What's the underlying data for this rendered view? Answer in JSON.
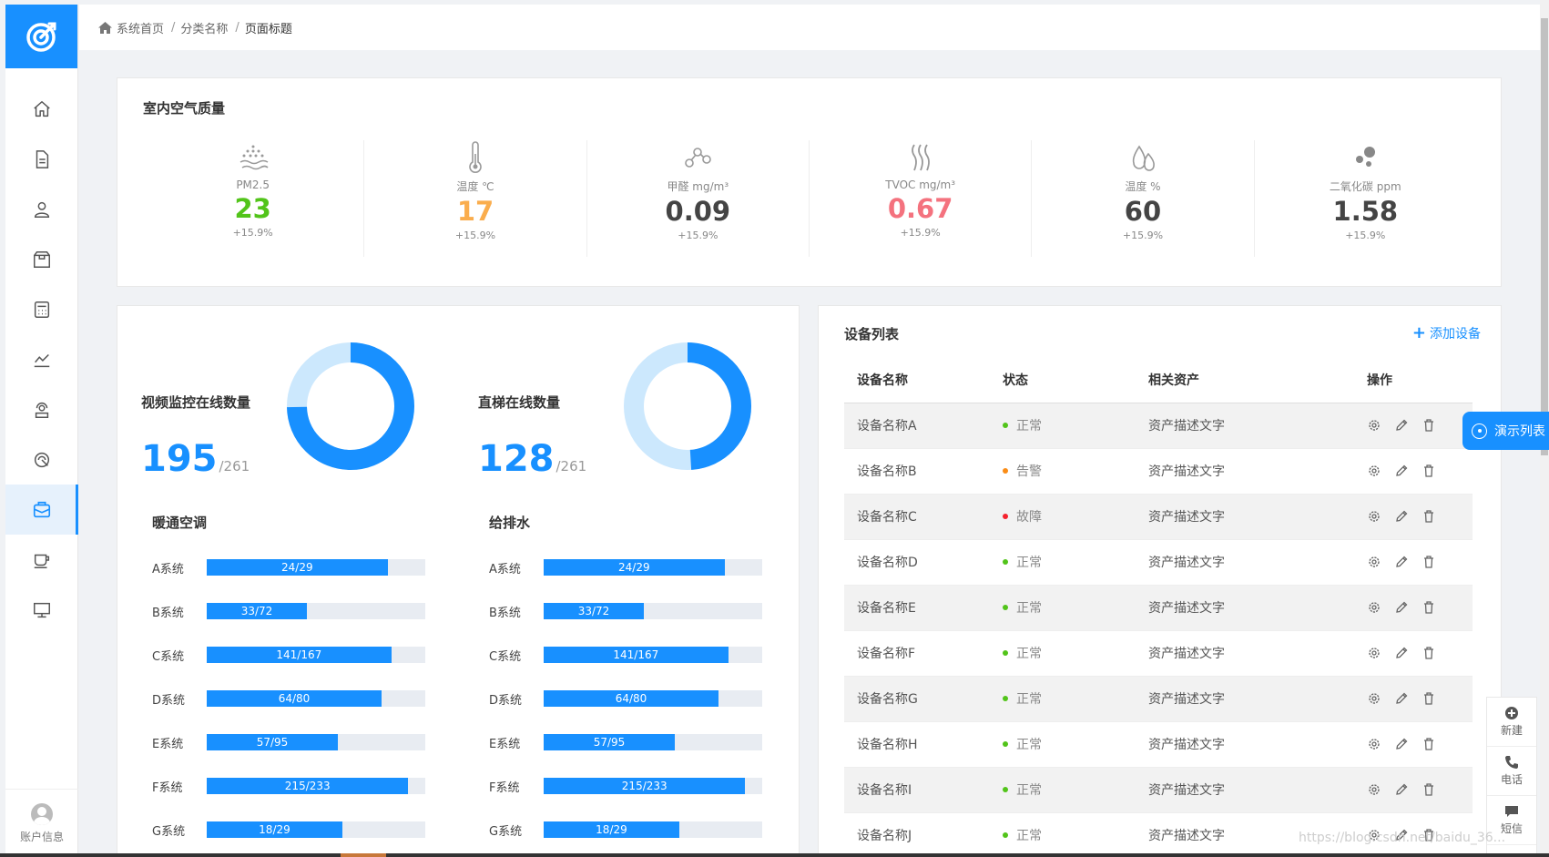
{
  "breadcrumb": {
    "items": [
      "系统首页",
      "分类名称"
    ],
    "current": "页面标题"
  },
  "sidebar": {
    "items": [
      "home-icon",
      "document-icon",
      "user-group-icon",
      "box-icon",
      "calculator-icon",
      "chart-icon",
      "sensor-icon",
      "monitor-wave-icon",
      "dashboard-icon",
      "cup-icon",
      "desktop-icon"
    ],
    "active": "dashboard-icon",
    "account_label": "账户信息"
  },
  "air_quality": {
    "title": "室内空气质量",
    "metrics": [
      {
        "icon": "dust-particles-icon",
        "label": "PM2.5",
        "value": "23",
        "change": "+15.9%",
        "color": "#52c41a"
      },
      {
        "icon": "thermometer-icon",
        "label": "温度 ℃",
        "value": "17",
        "change": "+15.9%",
        "color": "#faad4d"
      },
      {
        "icon": "molecule-icon",
        "label": "甲醛 mg/m³",
        "value": "0.09",
        "change": "+15.9%",
        "color": "#444444"
      },
      {
        "icon": "vapor-icon",
        "label": "TVOC mg/m³",
        "value": "0.67",
        "change": "+15.9%",
        "color": "#f4727e"
      },
      {
        "icon": "water-drops-icon",
        "label": "温度 %",
        "value": "60",
        "change": "+15.9%",
        "color": "#444444"
      },
      {
        "icon": "co2-bubbles-icon",
        "label": "二氧化碳 ppm",
        "value": "1.58",
        "change": "+15.9%",
        "color": "#444444"
      }
    ]
  },
  "online": [
    {
      "title": "视频监控在线数量",
      "value": "195",
      "total": "/261",
      "count": 195,
      "max": 261
    },
    {
      "title": "直梯在线数量",
      "value": "128",
      "total": "/261",
      "count": 128,
      "max": 261
    }
  ],
  "systems": [
    {
      "title": "暖通空调",
      "rows": [
        {
          "label": "A系统",
          "text": "24/29",
          "value": 24,
          "max": 29
        },
        {
          "label": "B系统",
          "text": "33/72",
          "value": 33,
          "max": 72
        },
        {
          "label": "C系统",
          "text": "141/167",
          "value": 141,
          "max": 167
        },
        {
          "label": "D系统",
          "text": "64/80",
          "value": 64,
          "max": 80
        },
        {
          "label": "E系统",
          "text": "57/95",
          "value": 57,
          "max": 95
        },
        {
          "label": "F系统",
          "text": "215/233",
          "value": 215,
          "max": 233
        },
        {
          "label": "G系统",
          "text": "18/29",
          "value": 18,
          "max": 29
        }
      ]
    },
    {
      "title": "给排水",
      "rows": [
        {
          "label": "A系统",
          "text": "24/29",
          "value": 24,
          "max": 29
        },
        {
          "label": "B系统",
          "text": "33/72",
          "value": 33,
          "max": 72
        },
        {
          "label": "C系统",
          "text": "141/167",
          "value": 141,
          "max": 167
        },
        {
          "label": "D系统",
          "text": "64/80",
          "value": 64,
          "max": 80
        },
        {
          "label": "E系统",
          "text": "57/95",
          "value": 57,
          "max": 95
        },
        {
          "label": "F系统",
          "text": "215/233",
          "value": 215,
          "max": 233
        },
        {
          "label": "G系统",
          "text": "18/29",
          "value": 18,
          "max": 29
        }
      ]
    }
  ],
  "devices": {
    "title": "设备列表",
    "add_label": "添加设备",
    "columns": [
      "设备名称",
      "状态",
      "相关资产",
      "操作"
    ],
    "rows": [
      {
        "name": "设备名称A",
        "status": "正常",
        "status_color": "#52c41a",
        "asset": "资产描述文字"
      },
      {
        "name": "设备名称B",
        "status": "告警",
        "status_color": "#fa8c16",
        "asset": "资产描述文字"
      },
      {
        "name": "设备名称C",
        "status": "故障",
        "status_color": "#f5222d",
        "asset": "资产描述文字"
      },
      {
        "name": "设备名称D",
        "status": "正常",
        "status_color": "#52c41a",
        "asset": "资产描述文字"
      },
      {
        "name": "设备名称E",
        "status": "正常",
        "status_color": "#52c41a",
        "asset": "资产描述文字"
      },
      {
        "name": "设备名称F",
        "status": "正常",
        "status_color": "#52c41a",
        "asset": "资产描述文字"
      },
      {
        "name": "设备名称G",
        "status": "正常",
        "status_color": "#52c41a",
        "asset": "资产描述文字"
      },
      {
        "name": "设备名称H",
        "status": "正常",
        "status_color": "#52c41a",
        "asset": "资产描述文字"
      },
      {
        "name": "设备名称I",
        "status": "正常",
        "status_color": "#52c41a",
        "asset": "资产描述文字"
      },
      {
        "name": "设备名称J",
        "status": "正常",
        "status_color": "#52c41a",
        "asset": "资产描述文字"
      }
    ]
  },
  "floating": {
    "demo_label": "演示列表",
    "tools": [
      {
        "icon": "plus-circle-icon",
        "label": "新建"
      },
      {
        "icon": "phone-icon",
        "label": "电话"
      },
      {
        "icon": "message-icon",
        "label": "短信"
      }
    ]
  },
  "watermark": "https://blog.csdn.net/baidu_36..."
}
